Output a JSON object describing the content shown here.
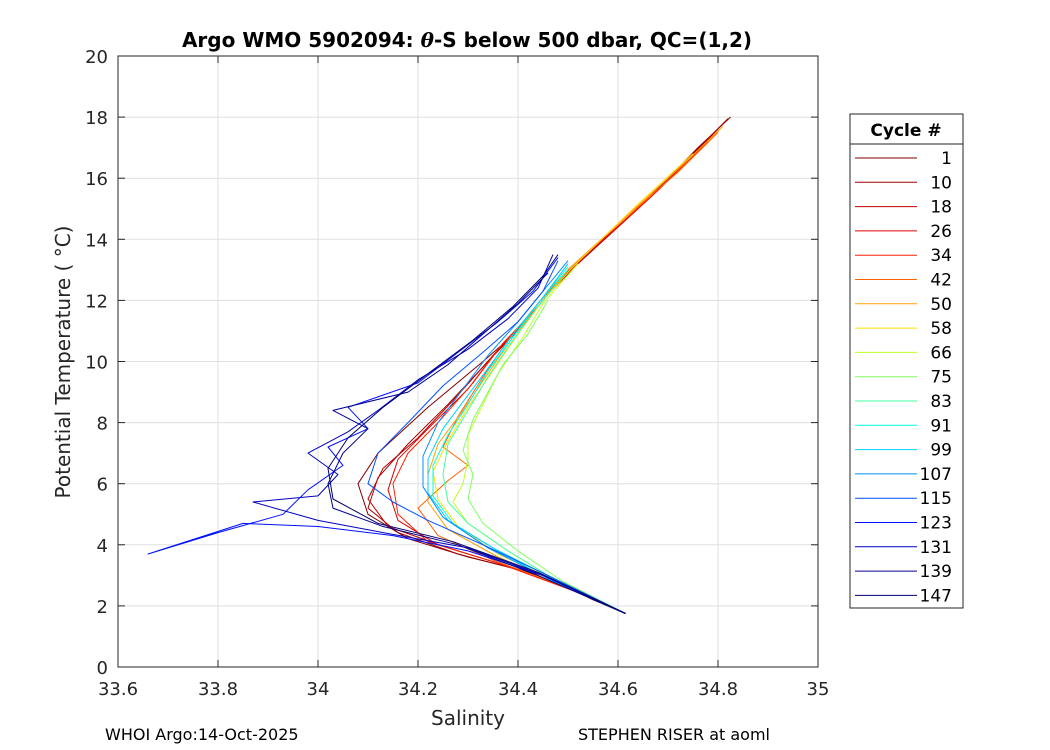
{
  "colors": {
    "axis": "#262626",
    "grid": "#dfdfdf",
    "background": "#ffffff"
  },
  "footer": {
    "left": "WHOI Argo:14-Oct-2025",
    "right": "STEPHEN RISER at aoml"
  },
  "chart_data": {
    "type": "line",
    "title_parts": [
      "Argo WMO 5902094: ",
      "θ",
      "-S below 500 dbar,  QC=(1,2)"
    ],
    "xlabel": "Salinity",
    "ylabel": "Potential Temperature ( °C)",
    "xlim": [
      33.6,
      35
    ],
    "ylim": [
      0,
      20
    ],
    "x_ticks": [
      33.6,
      33.8,
      34,
      34.2,
      34.4,
      34.6,
      34.8,
      35
    ],
    "x_tick_labels": [
      "33.6",
      "33.8",
      "34",
      "34.2",
      "34.4",
      "34.6",
      "34.8",
      "35"
    ],
    "y_ticks": [
      0,
      2,
      4,
      6,
      8,
      10,
      12,
      14,
      16,
      18,
      20
    ],
    "y_tick_labels": [
      "0",
      "2",
      "4",
      "6",
      "8",
      "10",
      "12",
      "14",
      "16",
      "18",
      "20"
    ],
    "grid": true,
    "legend_title": "Cycle #",
    "legend_position": "right",
    "series": [
      {
        "name": "1",
        "color": "#800000",
        "points": [
          [
            34.615,
            1.75
          ],
          [
            34.55,
            2.2
          ],
          [
            34.45,
            3.0
          ],
          [
            34.3,
            3.6
          ],
          [
            34.18,
            4.2
          ],
          [
            34.1,
            5.0
          ],
          [
            34.08,
            6.0
          ],
          [
            34.12,
            7.0
          ],
          [
            34.22,
            8.5
          ],
          [
            34.33,
            10.0
          ],
          [
            34.4,
            11.0
          ],
          [
            34.45,
            12.0
          ],
          [
            34.5,
            13.0
          ],
          [
            34.57,
            14.0
          ],
          [
            34.64,
            15.0
          ],
          [
            34.7,
            16.0
          ],
          [
            34.76,
            17.0
          ],
          [
            34.825,
            18.0
          ]
        ]
      },
      {
        "name": "10",
        "color": "#a00000",
        "points": [
          [
            34.615,
            1.75
          ],
          [
            34.54,
            2.3
          ],
          [
            34.42,
            3.1
          ],
          [
            34.28,
            3.7
          ],
          [
            34.16,
            4.4
          ],
          [
            34.1,
            5.2
          ],
          [
            34.12,
            6.2
          ],
          [
            34.18,
            7.3
          ],
          [
            34.26,
            8.6
          ],
          [
            34.34,
            10.0
          ],
          [
            34.41,
            11.2
          ],
          [
            34.46,
            12.2
          ],
          [
            34.52,
            13.2
          ],
          [
            34.6,
            14.4
          ],
          [
            34.68,
            15.6
          ],
          [
            34.75,
            16.8
          ],
          [
            34.82,
            17.95
          ]
        ]
      },
      {
        "name": "18",
        "color": "#c00000",
        "points": [
          [
            34.615,
            1.75
          ],
          [
            34.53,
            2.4
          ],
          [
            34.4,
            3.2
          ],
          [
            34.26,
            3.9
          ],
          [
            34.14,
            4.6
          ],
          [
            34.1,
            5.5
          ],
          [
            34.13,
            6.5
          ],
          [
            34.2,
            7.5
          ],
          [
            34.28,
            8.9
          ],
          [
            34.35,
            10.2
          ],
          [
            34.42,
            11.4
          ],
          [
            34.47,
            12.4
          ],
          [
            34.53,
            13.4
          ],
          [
            34.62,
            14.7
          ],
          [
            34.72,
            16.3
          ],
          [
            34.8,
            17.6
          ]
        ]
      },
      {
        "name": "26",
        "color": "#e00000",
        "points": [
          [
            34.615,
            1.75
          ],
          [
            34.52,
            2.5
          ],
          [
            34.38,
            3.3
          ],
          [
            34.24,
            4.0
          ],
          [
            34.16,
            4.8
          ],
          [
            34.14,
            5.8
          ],
          [
            34.16,
            6.8
          ],
          [
            34.22,
            7.8
          ],
          [
            34.3,
            9.1
          ],
          [
            34.36,
            10.4
          ],
          [
            34.43,
            11.6
          ],
          [
            34.48,
            12.6
          ],
          [
            34.55,
            13.7
          ],
          [
            34.66,
            15.3
          ],
          [
            34.78,
            17.2
          ]
        ]
      },
      {
        "name": "34",
        "color": "#ff2000",
        "points": [
          [
            34.615,
            1.75
          ],
          [
            34.51,
            2.5
          ],
          [
            34.36,
            3.4
          ],
          [
            34.22,
            4.1
          ],
          [
            34.16,
            5.0
          ],
          [
            34.15,
            6.0
          ],
          [
            34.18,
            7.0
          ],
          [
            34.24,
            8.0
          ],
          [
            34.31,
            9.3
          ],
          [
            34.37,
            10.6
          ],
          [
            34.44,
            11.8
          ],
          [
            34.49,
            12.8
          ],
          [
            34.57,
            14.0
          ],
          [
            34.68,
            15.6
          ],
          [
            34.79,
            17.4
          ]
        ]
      },
      {
        "name": "42",
        "color": "#ff6000",
        "points": [
          [
            34.615,
            1.75
          ],
          [
            34.5,
            2.6
          ],
          [
            34.35,
            3.5
          ],
          [
            34.24,
            4.3
          ],
          [
            34.2,
            5.2
          ],
          [
            34.26,
            6.1
          ],
          [
            34.3,
            6.6
          ],
          [
            34.25,
            7.2
          ],
          [
            34.28,
            8.2
          ],
          [
            34.33,
            9.5
          ],
          [
            34.38,
            10.7
          ],
          [
            34.44,
            11.9
          ],
          [
            34.5,
            13.0
          ],
          [
            34.6,
            14.5
          ],
          [
            34.72,
            16.2
          ],
          [
            34.8,
            17.5
          ]
        ]
      },
      {
        "name": "50",
        "color": "#ffa000",
        "points": [
          [
            34.615,
            1.75
          ],
          [
            34.49,
            2.7
          ],
          [
            34.36,
            3.6
          ],
          [
            34.26,
            4.5
          ],
          [
            34.22,
            5.4
          ],
          [
            34.22,
            6.3
          ],
          [
            34.24,
            7.3
          ],
          [
            34.29,
            8.4
          ],
          [
            34.34,
            9.6
          ],
          [
            34.39,
            10.8
          ],
          [
            34.45,
            12.0
          ],
          [
            34.5,
            13.0
          ],
          [
            34.62,
            14.8
          ],
          [
            34.74,
            16.6
          ],
          [
            34.81,
            17.7
          ]
        ]
      },
      {
        "name": "58",
        "color": "#ffe000",
        "points": [
          [
            34.615,
            1.75
          ],
          [
            34.48,
            2.8
          ],
          [
            34.36,
            3.7
          ],
          [
            34.28,
            4.6
          ],
          [
            34.24,
            5.5
          ],
          [
            34.23,
            6.4
          ],
          [
            34.26,
            7.4
          ],
          [
            34.3,
            8.5
          ],
          [
            34.35,
            9.7
          ],
          [
            34.4,
            10.9
          ],
          [
            34.45,
            12.0
          ],
          [
            34.51,
            13.1
          ],
          [
            34.63,
            15.0
          ],
          [
            34.75,
            16.8
          ]
        ]
      },
      {
        "name": "66",
        "color": "#c0ff20",
        "points": [
          [
            34.615,
            1.75
          ],
          [
            34.48,
            2.8
          ],
          [
            34.38,
            3.8
          ],
          [
            34.3,
            4.7
          ],
          [
            34.27,
            5.4
          ],
          [
            34.29,
            6.0
          ],
          [
            34.3,
            6.8
          ],
          [
            34.3,
            7.6
          ],
          [
            34.33,
            8.6
          ],
          [
            34.36,
            9.6
          ],
          [
            34.41,
            10.8
          ],
          [
            34.45,
            11.9
          ],
          [
            34.52,
            13.2
          ]
        ]
      },
      {
        "name": "75",
        "color": "#80ff60",
        "points": [
          [
            34.615,
            1.75
          ],
          [
            34.49,
            2.8
          ],
          [
            34.4,
            3.8
          ],
          [
            34.33,
            4.7
          ],
          [
            34.3,
            5.5
          ],
          [
            34.31,
            6.3
          ],
          [
            34.29,
            7.1
          ],
          [
            34.31,
            8.1
          ],
          [
            34.34,
            9.0
          ],
          [
            34.37,
            9.9
          ],
          [
            34.42,
            10.9
          ],
          [
            34.46,
            12.0
          ]
        ]
      },
      {
        "name": "83",
        "color": "#40ffa0",
        "points": [
          [
            34.615,
            1.75
          ],
          [
            34.48,
            2.8
          ],
          [
            34.38,
            3.8
          ],
          [
            34.3,
            4.7
          ],
          [
            34.26,
            5.4
          ],
          [
            34.25,
            6.3
          ],
          [
            34.26,
            7.3
          ],
          [
            34.3,
            8.4
          ],
          [
            34.34,
            9.5
          ],
          [
            34.39,
            10.7
          ],
          [
            34.44,
            11.8
          ],
          [
            34.5,
            13.0
          ]
        ]
      },
      {
        "name": "91",
        "color": "#00ffe0",
        "points": [
          [
            34.615,
            1.75
          ],
          [
            34.47,
            2.8
          ],
          [
            34.36,
            3.8
          ],
          [
            34.27,
            4.7
          ],
          [
            34.23,
            5.6
          ],
          [
            34.23,
            6.6
          ],
          [
            34.26,
            7.6
          ],
          [
            34.3,
            8.6
          ],
          [
            34.34,
            9.7
          ],
          [
            34.39,
            10.8
          ],
          [
            34.44,
            11.9
          ],
          [
            34.5,
            13.1
          ]
        ]
      },
      {
        "name": "99",
        "color": "#00d0ff",
        "points": [
          [
            34.615,
            1.75
          ],
          [
            34.47,
            2.9
          ],
          [
            34.35,
            3.9
          ],
          [
            34.26,
            4.8
          ],
          [
            34.22,
            5.7
          ],
          [
            34.22,
            6.8
          ],
          [
            34.25,
            7.8
          ],
          [
            34.3,
            8.9
          ],
          [
            34.35,
            10.0
          ],
          [
            34.4,
            11.1
          ],
          [
            34.45,
            12.1
          ],
          [
            34.5,
            13.2
          ]
        ]
      },
      {
        "name": "107",
        "color": "#0090ff",
        "points": [
          [
            34.615,
            1.75
          ],
          [
            34.46,
            2.9
          ],
          [
            34.34,
            3.9
          ],
          [
            34.25,
            4.9
          ],
          [
            34.21,
            5.9
          ],
          [
            34.21,
            6.9
          ],
          [
            34.24,
            8.0
          ],
          [
            34.29,
            9.1
          ],
          [
            34.34,
            10.2
          ],
          [
            34.4,
            11.3
          ],
          [
            34.45,
            12.3
          ],
          [
            34.5,
            13.3
          ]
        ]
      },
      {
        "name": "115",
        "color": "#0050ff",
        "points": [
          [
            34.615,
            1.75
          ],
          [
            34.46,
            3.0
          ],
          [
            34.33,
            4.0
          ],
          [
            34.22,
            4.8
          ],
          [
            34.15,
            5.4
          ],
          [
            34.1,
            6.0
          ],
          [
            34.12,
            7.0
          ],
          [
            34.18,
            8.0
          ],
          [
            34.25,
            9.2
          ],
          [
            34.33,
            10.3
          ],
          [
            34.4,
            11.3
          ],
          [
            34.45,
            12.3
          ],
          [
            34.48,
            13.3
          ]
        ]
      },
      {
        "name": "123",
        "color": "#0010ff",
        "points": [
          [
            34.615,
            1.75
          ],
          [
            34.45,
            3.0
          ],
          [
            34.3,
            3.8
          ],
          [
            34.15,
            4.3
          ],
          [
            34.0,
            4.6
          ],
          [
            33.85,
            4.7
          ],
          [
            33.66,
            3.7
          ],
          [
            33.8,
            4.4
          ],
          [
            33.93,
            5.0
          ],
          [
            33.98,
            5.8
          ],
          [
            34.05,
            6.6
          ],
          [
            34.02,
            7.2
          ],
          [
            34.1,
            7.8
          ],
          [
            34.06,
            8.5
          ],
          [
            34.2,
            9.3
          ],
          [
            34.28,
            10.3
          ],
          [
            34.36,
            11.3
          ],
          [
            34.43,
            12.3
          ],
          [
            34.48,
            13.4
          ]
        ]
      },
      {
        "name": "131",
        "color": "#0000c0",
        "points": [
          [
            34.615,
            1.75
          ],
          [
            34.45,
            3.0
          ],
          [
            34.3,
            3.9
          ],
          [
            34.13,
            4.4
          ],
          [
            34.0,
            4.8
          ],
          [
            33.87,
            5.4
          ],
          [
            34.0,
            5.6
          ],
          [
            34.04,
            6.3
          ],
          [
            33.98,
            7.0
          ],
          [
            34.06,
            7.7
          ],
          [
            34.12,
            8.4
          ],
          [
            34.2,
            9.4
          ],
          [
            34.3,
            10.4
          ],
          [
            34.38,
            11.4
          ],
          [
            34.44,
            12.4
          ],
          [
            34.47,
            13.5
          ]
        ]
      },
      {
        "name": "139",
        "color": "#000090",
        "points": [
          [
            34.615,
            1.75
          ],
          [
            34.44,
            3.0
          ],
          [
            34.28,
            4.0
          ],
          [
            34.13,
            4.6
          ],
          [
            34.03,
            5.2
          ],
          [
            34.02,
            6.0
          ],
          [
            34.05,
            7.0
          ],
          [
            34.1,
            7.8
          ],
          [
            34.03,
            8.4
          ],
          [
            34.18,
            9.0
          ],
          [
            34.26,
            9.9
          ],
          [
            34.33,
            10.9
          ],
          [
            34.4,
            11.9
          ],
          [
            34.46,
            12.9
          ]
        ]
      },
      {
        "name": "147",
        "color": "#000070",
        "points": [
          [
            34.615,
            1.75
          ],
          [
            34.44,
            3.1
          ],
          [
            34.27,
            4.1
          ],
          [
            34.12,
            4.7
          ],
          [
            34.03,
            5.5
          ],
          [
            34.02,
            6.5
          ],
          [
            34.06,
            7.5
          ],
          [
            34.13,
            8.5
          ],
          [
            34.22,
            9.6
          ],
          [
            34.31,
            10.7
          ],
          [
            34.39,
            11.8
          ],
          [
            34.45,
            12.8
          ],
          [
            34.48,
            13.5
          ]
        ]
      }
    ]
  }
}
